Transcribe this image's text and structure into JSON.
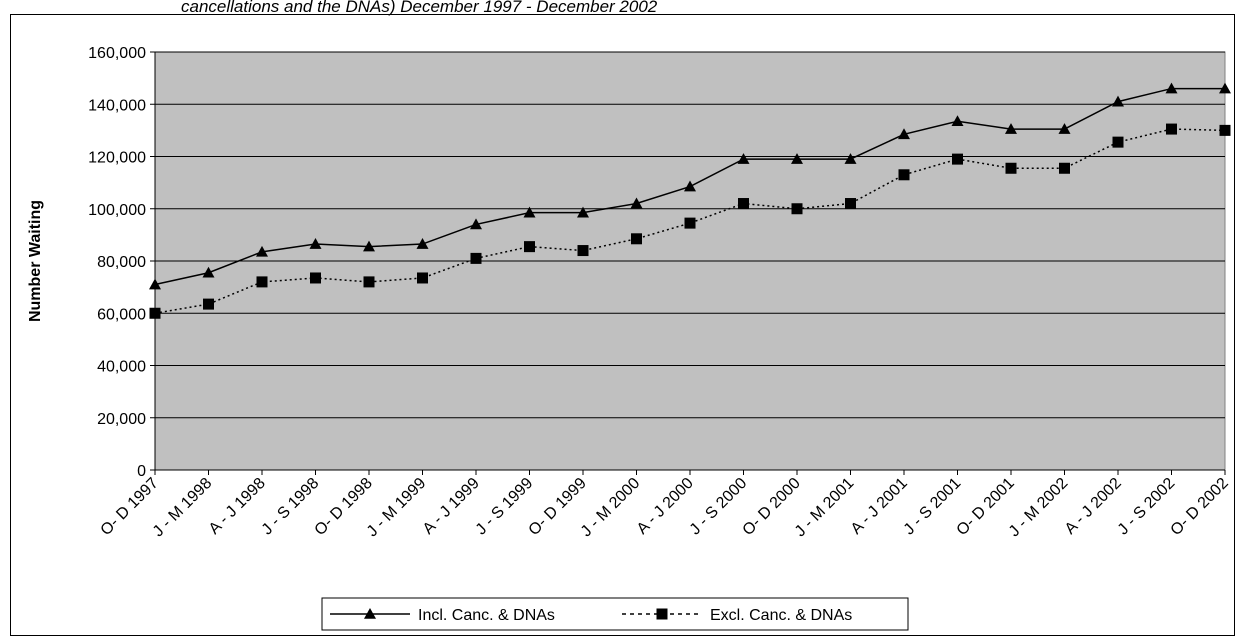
{
  "chart_data": {
    "type": "line",
    "title_fragment": "cancellations and the DNAs) December 1997 - December 2002",
    "ylabel": "Number Waiting",
    "xlabel": "",
    "ylim": [
      0,
      160000
    ],
    "yticks": [
      "0",
      "20,000",
      "40,000",
      "60,000",
      "80,000",
      "100,000",
      "120,000",
      "140,000",
      "160,000"
    ],
    "categories": [
      "O- D 1997",
      "J - M 1998",
      "A - J 1998",
      "J - S 1998",
      "O- D 1998",
      "J - M 1999",
      "A - J 1999",
      "J - S 1999",
      "O- D 1999",
      "J - M 2000",
      "A - J 2000",
      "J - S 2000",
      "O- D 2000",
      "J - M 2001",
      "A - J 2001",
      "J - S 2001",
      "O- D 2001",
      "J - M 2002",
      "A - J 2002",
      "J - S 2002",
      "O- D 2002"
    ],
    "series": [
      {
        "name": "Incl. Canc. & DNAs",
        "marker": "triangle",
        "line_style": "solid",
        "values": [
          71000,
          75500,
          83500,
          86500,
          85500,
          86500,
          94000,
          98500,
          98500,
          102000,
          108500,
          119000,
          119000,
          119000,
          128500,
          133500,
          130500,
          130500,
          141000,
          146000,
          146000
        ]
      },
      {
        "name": "Excl. Canc. & DNAs",
        "marker": "square",
        "line_style": "dotted",
        "values": [
          60000,
          63500,
          72000,
          73500,
          72000,
          73500,
          81000,
          85500,
          84000,
          88500,
          94500,
          102000,
          100000,
          102000,
          113000,
          119000,
          115500,
          115500,
          125500,
          130500,
          130000
        ]
      }
    ],
    "grid": true,
    "plot_background": "#c0c0c0",
    "legend": {
      "position": "bottom"
    }
  }
}
